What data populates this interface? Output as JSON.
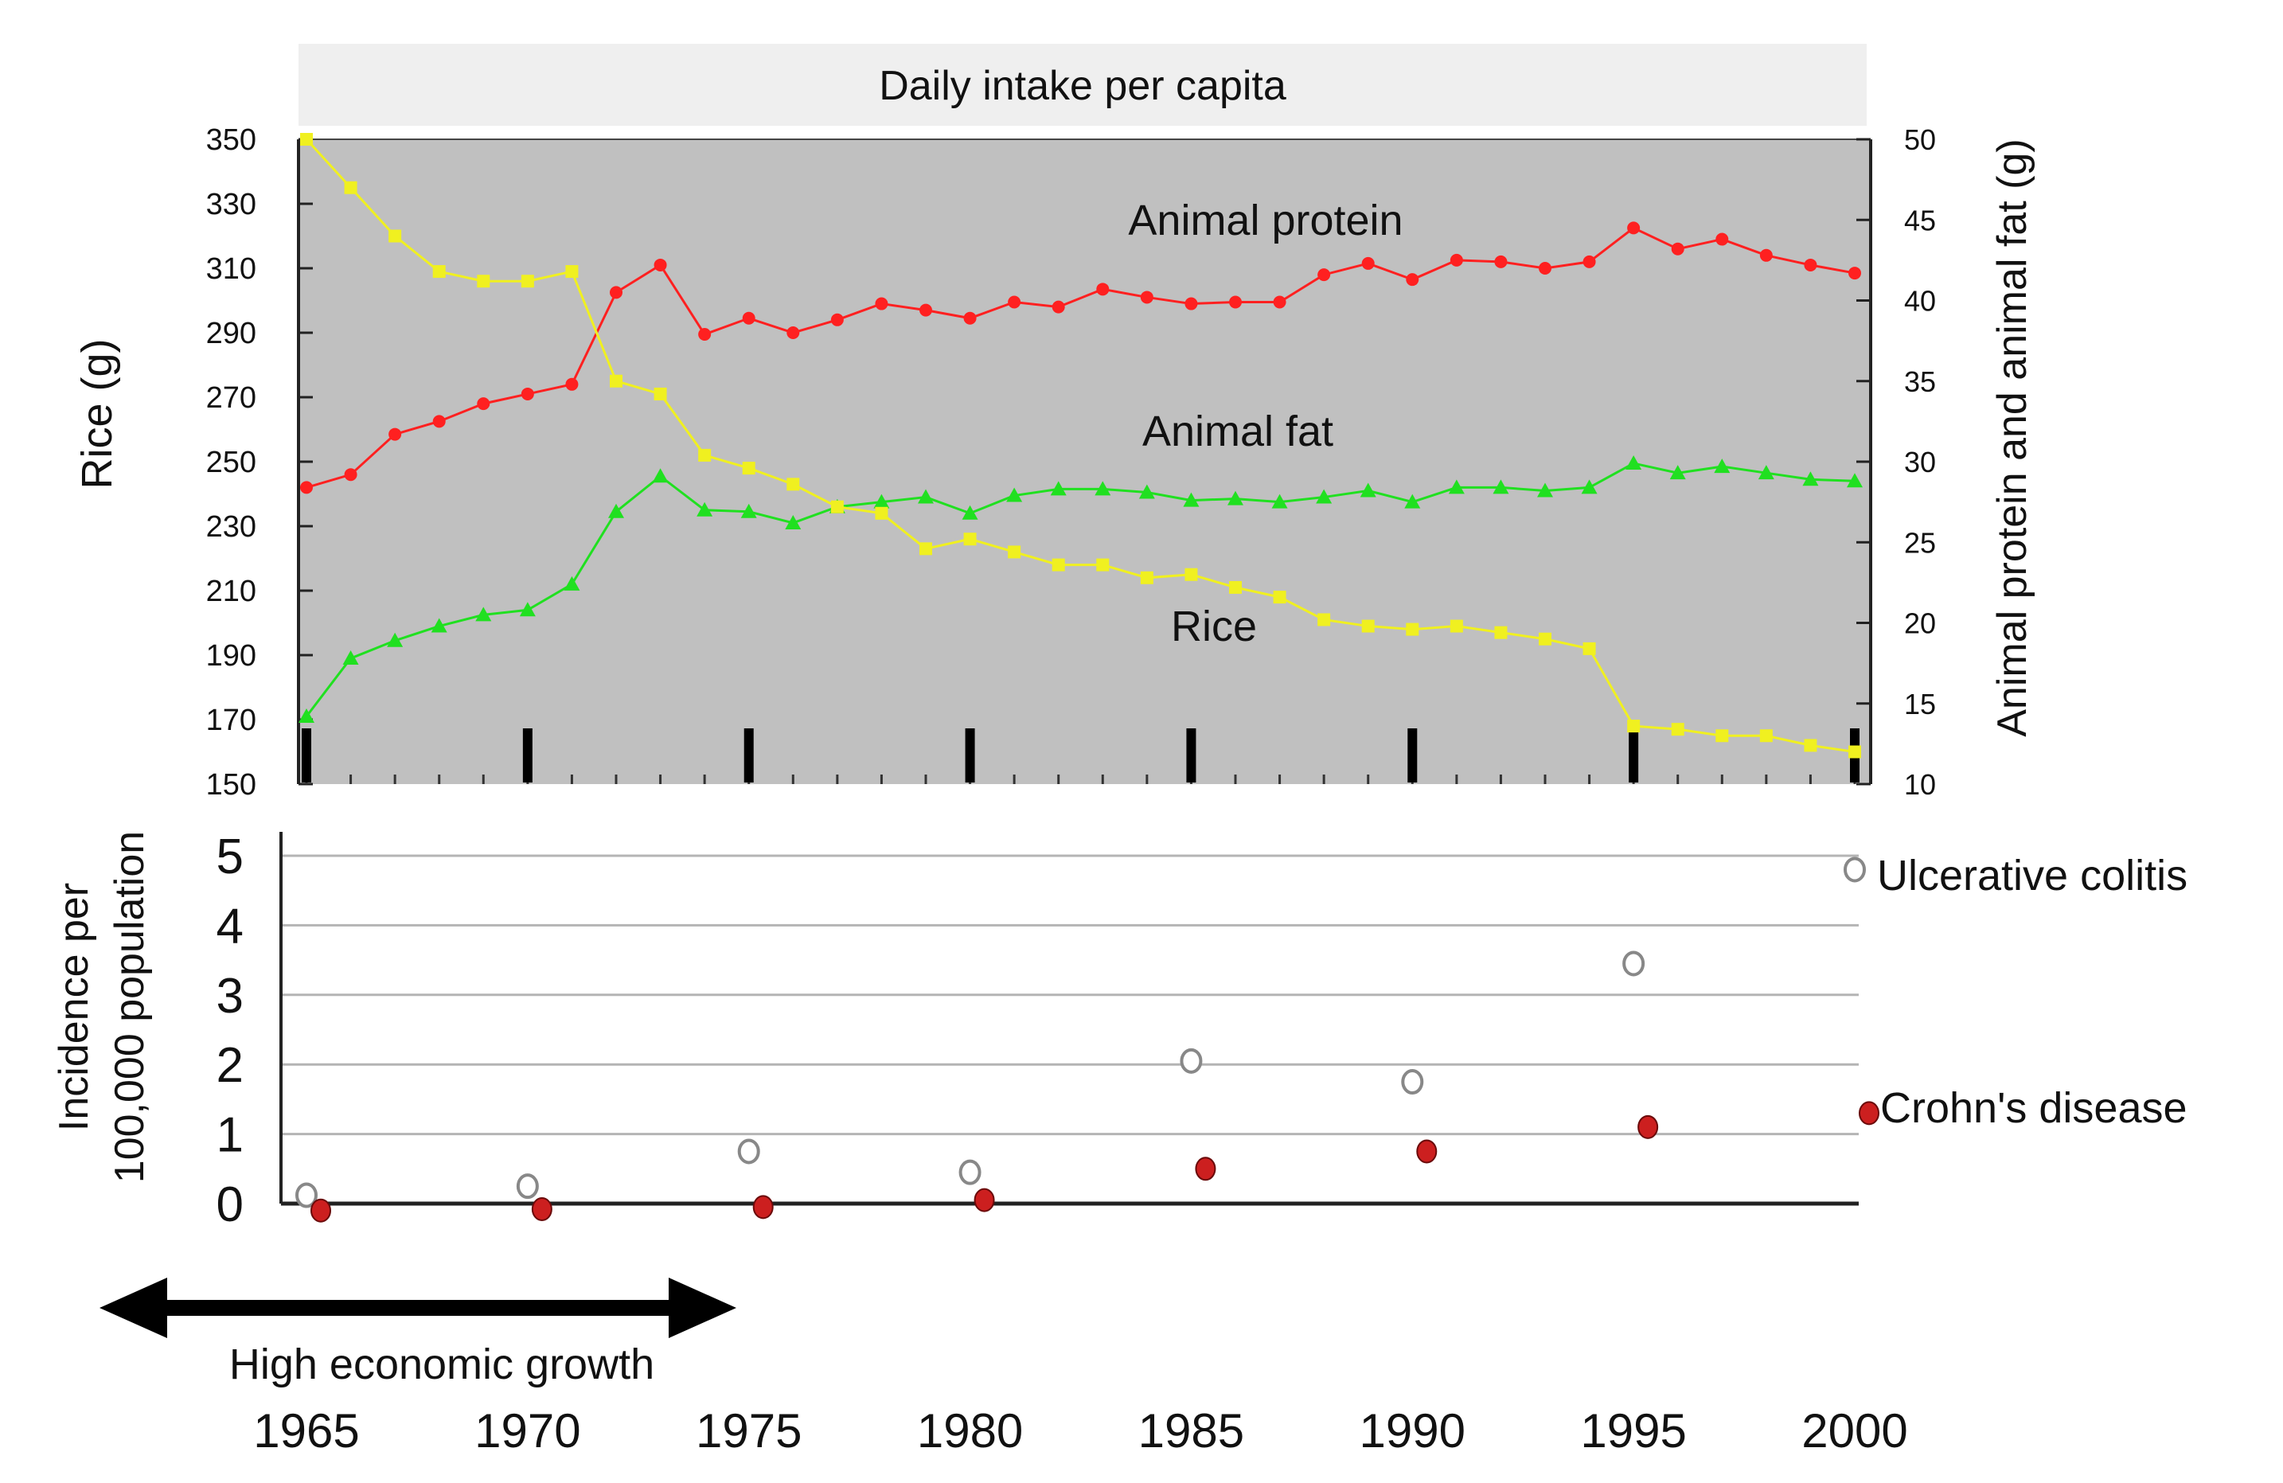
{
  "chart_data": [
    {
      "type": "line",
      "title": "Daily intake per capita",
      "xlabel": "",
      "ylabel": "Rice  (g)",
      "ylabel_right": "Animal protein and animal fat (g)",
      "x": [
        1965,
        1966,
        1967,
        1968,
        1969,
        1970,
        1971,
        1972,
        1973,
        1974,
        1975,
        1976,
        1977,
        1978,
        1979,
        1980,
        1981,
        1982,
        1983,
        1984,
        1985,
        1986,
        1987,
        1988,
        1989,
        1990,
        1991,
        1992,
        1993,
        1994,
        1995,
        1996,
        1997,
        1998,
        1999,
        2000
      ],
      "xlim": [
        1965,
        2000
      ],
      "ylim_left": [
        150,
        350
      ],
      "ylim_right": [
        10,
        50
      ],
      "yticks_left": [
        "350",
        "330",
        "310",
        "290",
        "270",
        "250",
        "230",
        "210",
        "190",
        "170",
        "150"
      ],
      "yticks_right": [
        "50",
        "45",
        "40",
        "35",
        "30",
        "25",
        "20",
        "15",
        "10"
      ],
      "grid": false,
      "background": "#c0c0c0",
      "series": [
        {
          "name": "Animal protein",
          "axis": "right",
          "color": "#ff2020",
          "marker": "circle",
          "values": [
            28.4,
            29.2,
            31.7,
            32.5,
            33.6,
            34.2,
            34.8,
            40.5,
            42.2,
            37.9,
            38.9,
            38.0,
            38.8,
            39.8,
            39.4,
            38.9,
            39.9,
            39.6,
            40.7,
            40.2,
            39.8,
            39.9,
            39.9,
            41.6,
            42.3,
            41.3,
            42.5,
            42.4,
            42.0,
            42.4,
            44.5,
            43.2,
            43.8,
            42.8,
            42.2,
            41.7
          ]
        },
        {
          "name": "Animal fat",
          "axis": "right",
          "color": "#20e020",
          "marker": "triangle",
          "values": [
            14.2,
            17.8,
            18.9,
            19.8,
            20.5,
            20.8,
            22.4,
            26.9,
            29.1,
            27.0,
            26.9,
            26.2,
            27.2,
            27.5,
            27.8,
            26.8,
            27.9,
            28.3,
            28.3,
            28.1,
            27.6,
            27.7,
            27.5,
            27.8,
            28.2,
            27.5,
            28.4,
            28.4,
            28.2,
            28.4,
            29.9,
            29.3,
            29.7,
            29.3,
            28.9,
            28.8
          ]
        },
        {
          "name": "Rice",
          "axis": "left",
          "color": "#f0f020",
          "marker": "square",
          "values": [
            350,
            335,
            320,
            309,
            306,
            306,
            309,
            275,
            271,
            252,
            248,
            243,
            236,
            234,
            223,
            226,
            222,
            218,
            218,
            214,
            215,
            211,
            208,
            201,
            199,
            198,
            199,
            197,
            195,
            192,
            168,
            167,
            165,
            165,
            162,
            160
          ]
        }
      ],
      "annotations": [
        "Animal protein",
        "Animal fat",
        "Rice"
      ]
    },
    {
      "type": "scatter",
      "title": "",
      "xlabel": "",
      "ylabel": "Incidence per 100,000 population",
      "ylabel_lines": [
        "Incidence per",
        "100,000 population"
      ],
      "ylim": [
        0,
        5
      ],
      "yticks": [
        "5",
        "4",
        "3",
        "2",
        "1",
        "0"
      ],
      "grid": true,
      "series": [
        {
          "name": "Ulcerative colitis",
          "color": "#888888",
          "marker": "open-circle",
          "x": [
            1965,
            1970,
            1975,
            1980,
            1985,
            1990,
            1995,
            2000
          ],
          "values": [
            0.12,
            0.25,
            0.75,
            0.45,
            2.05,
            1.75,
            3.45,
            4.8
          ]
        },
        {
          "name": "Crohn's disease",
          "color": "#cc1f1f",
          "marker": "filled-circle",
          "x": [
            1965,
            1970,
            1975,
            1980,
            1985,
            1990,
            1995,
            2000
          ],
          "values": [
            -0.1,
            -0.08,
            -0.05,
            0.05,
            0.5,
            0.75,
            1.1,
            1.3
          ]
        }
      ]
    }
  ],
  "x_axis": {
    "tick_labels": [
      "1965",
      "1970",
      "1975",
      "1980",
      "1985",
      "1990",
      "1995",
      "2000"
    ]
  },
  "era_annotation": {
    "label": "High economic growth"
  }
}
